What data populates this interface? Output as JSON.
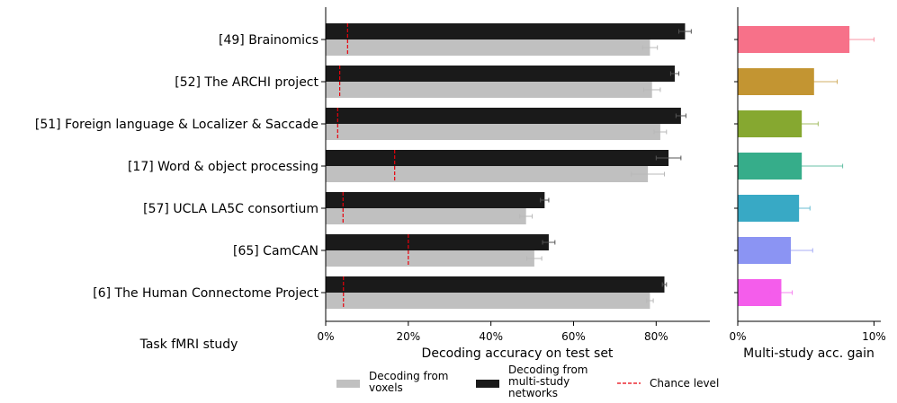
{
  "chart_data": [
    {
      "type": "bar",
      "orientation": "horizontal",
      "categories": [
        "[49] Brainomics",
        "[52] The ARCHI project",
        "[51] Foreign language & Localizer & Saccade",
        "[17] Word & object processing",
        "[57] UCLA LA5C consortium",
        "[65] CamCAN",
        "[6] The Human Connectome Project"
      ],
      "category_axis_label": "Task fMRI study",
      "xlabel": "Decoding accuracy on test set",
      "xlim": [
        0,
        93
      ],
      "xticks": [
        0,
        20,
        40,
        60,
        80
      ],
      "xtick_labels": [
        "0%",
        "20%",
        "40%",
        "60%",
        "80%"
      ],
      "series": [
        {
          "name": "Decoding from multi-study networks",
          "color": "#1a1a1a",
          "values": [
            87.0,
            84.5,
            86.0,
            83.0,
            53.0,
            54.0,
            82.0
          ],
          "errors": [
            1.5,
            1.0,
            1.2,
            3.0,
            1.0,
            1.5,
            0.5
          ]
        },
        {
          "name": "Decoding from voxels",
          "color": "#c0c0c0",
          "values": [
            78.5,
            79.0,
            81.0,
            78.0,
            48.5,
            50.5,
            78.5
          ],
          "errors": [
            1.8,
            2.0,
            1.5,
            4.0,
            1.5,
            1.8,
            0.8
          ]
        }
      ],
      "chance_level": {
        "name": "Chance level",
        "color": "#e8000b",
        "values": [
          5.3,
          3.4,
          2.9,
          16.7,
          4.2,
          20.0,
          4.3
        ]
      },
      "legend": [
        {
          "label": "Decoding from voxels",
          "style": "patch",
          "color": "#c0c0c0"
        },
        {
          "label": "Decoding from multi-study networks",
          "style": "patch",
          "color": "#1a1a1a"
        },
        {
          "label": "Chance level",
          "style": "dashed-line",
          "color": "#e8000b"
        }
      ],
      "legend_placement": "bottom-center",
      "grid": false
    },
    {
      "type": "bar",
      "orientation": "horizontal",
      "xlabel": "Multi-study acc. gain",
      "xlim": [
        0,
        10.5
      ],
      "xticks": [
        0,
        10
      ],
      "xtick_labels": [
        "0%",
        "10%"
      ],
      "values": [
        8.2,
        5.6,
        4.7,
        4.7,
        4.5,
        3.9,
        3.2
      ],
      "errors": [
        1.8,
        1.7,
        1.2,
        3.0,
        0.8,
        1.6,
        0.8
      ],
      "colors": [
        "#f77189",
        "#c39532",
        "#86a830",
        "#36ad8a",
        "#38a9c5",
        "#8b94f3",
        "#f45deb"
      ],
      "grid": false
    }
  ]
}
